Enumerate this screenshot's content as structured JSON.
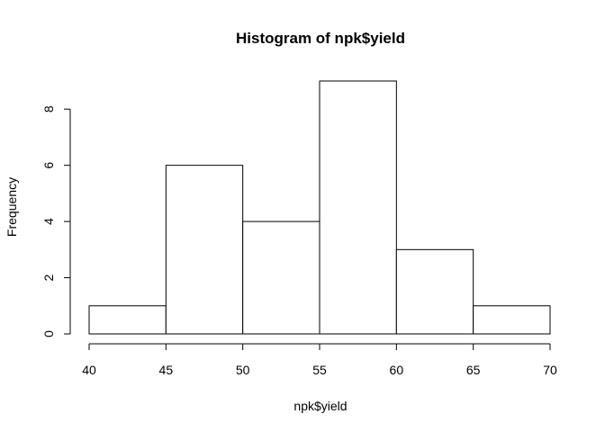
{
  "chart_data": {
    "type": "bar",
    "title": "Histogram of npk$yield",
    "xlabel": "npk$yield",
    "ylabel": "Frequency",
    "bins": [
      [
        40,
        45
      ],
      [
        45,
        50
      ],
      [
        50,
        55
      ],
      [
        55,
        60
      ],
      [
        60,
        65
      ],
      [
        65,
        70
      ]
    ],
    "values": [
      1,
      6,
      4,
      9,
      3,
      1
    ],
    "x_ticks": [
      40,
      45,
      50,
      55,
      60,
      65,
      70
    ],
    "y_ticks": [
      0,
      2,
      4,
      6,
      8
    ],
    "xlim": [
      40,
      70
    ],
    "ylim": [
      0,
      9
    ],
    "grid": false,
    "bar_fill": "#ffffff",
    "bar_stroke": "#000000"
  }
}
